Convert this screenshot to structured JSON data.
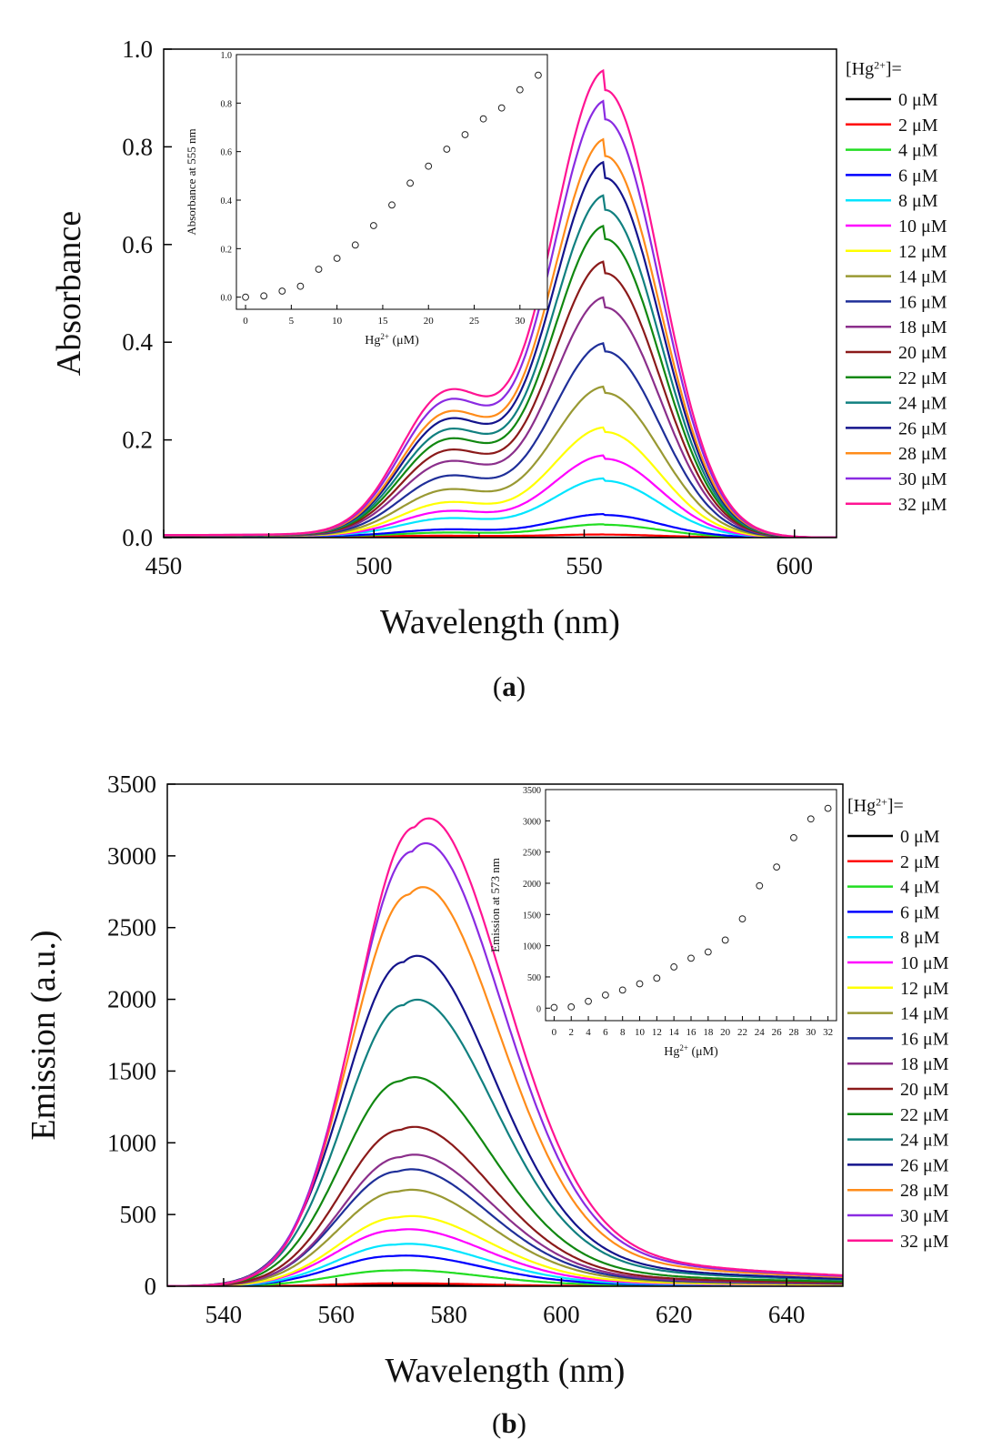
{
  "panel_a": {
    "caption": "(a)",
    "main_chart": {
      "type": "line",
      "xlabel": "Wavelength (nm)",
      "ylabel": "Absorbance",
      "xlim": [
        450,
        610
      ],
      "ylim": [
        0,
        1.0
      ],
      "xticks": [
        450,
        500,
        550,
        600
      ],
      "yticks": [
        0.0,
        0.2,
        0.4,
        0.6,
        0.8,
        1.0
      ],
      "ytick_labels": [
        "0.0",
        "0.2",
        "0.4",
        "0.6",
        "0.8",
        "1.0"
      ],
      "peak_x": 555,
      "legend_title": "[Hg2+]=",
      "legend_position": "right",
      "series": [
        {
          "name": "0 μM",
          "color": "#000000",
          "peak": 0.0
        },
        {
          "name": "2 μM",
          "color": "#ff0000",
          "peak": 0.005
        },
        {
          "name": "4 μM",
          "color": "#22dd22",
          "peak": 0.025
        },
        {
          "name": "6 μM",
          "color": "#0000ff",
          "peak": 0.045
        },
        {
          "name": "8 μM",
          "color": "#00e5ff",
          "peak": 0.115
        },
        {
          "name": "10 μM",
          "color": "#ff00ff",
          "peak": 0.16
        },
        {
          "name": "12 μM",
          "color": "#ffff00",
          "peak": 0.215
        },
        {
          "name": "14 μM",
          "color": "#999933",
          "peak": 0.295
        },
        {
          "name": "16 μM",
          "color": "#1f2f99",
          "peak": 0.38
        },
        {
          "name": "18 μM",
          "color": "#8b2f8b",
          "peak": 0.47
        },
        {
          "name": "20 μM",
          "color": "#8b1a1a",
          "peak": 0.54
        },
        {
          "name": "22 μM",
          "color": "#118811",
          "peak": 0.61
        },
        {
          "name": "24 μM",
          "color": "#118080",
          "peak": 0.67
        },
        {
          "name": "26 μM",
          "color": "#14148c",
          "peak": 0.735
        },
        {
          "name": "28 μM",
          "color": "#ff8c1a",
          "peak": 0.78
        },
        {
          "name": "30 μM",
          "color": "#8a2be2",
          "peak": 0.855
        },
        {
          "name": "32 μM",
          "color": "#ff1493",
          "peak": 0.915
        }
      ]
    },
    "inset_chart": {
      "type": "scatter",
      "xlabel": "Hg2+ (μM)",
      "ylabel": "Absorbance at 555 nm",
      "xlim": [
        -1,
        33
      ],
      "ylim": [
        -0.05,
        1.0
      ],
      "xticks": [
        0,
        5,
        10,
        15,
        20,
        25,
        30
      ],
      "yticks": [
        0.0,
        0.2,
        0.4,
        0.6,
        0.8,
        1.0
      ],
      "ytick_labels": [
        "0.0",
        "0.2",
        "0.4",
        "0.6",
        "0.8",
        "1.0"
      ],
      "x": [
        0,
        2,
        4,
        6,
        8,
        10,
        12,
        14,
        16,
        18,
        20,
        22,
        24,
        26,
        28,
        30,
        32
      ],
      "y": [
        0.0,
        0.005,
        0.025,
        0.045,
        0.115,
        0.16,
        0.215,
        0.295,
        0.38,
        0.47,
        0.54,
        0.61,
        0.67,
        0.735,
        0.78,
        0.855,
        0.915
      ]
    }
  },
  "panel_b": {
    "caption": "(b)",
    "main_chart": {
      "type": "line",
      "xlabel": "Wavelength (nm)",
      "ylabel": "Emission (a.u.)",
      "xlim": [
        530,
        650
      ],
      "ylim": [
        0,
        3500
      ],
      "xticks": [
        540,
        560,
        580,
        600,
        620,
        640
      ],
      "yticks": [
        0,
        500,
        1000,
        1500,
        2000,
        2500,
        3000,
        3500
      ],
      "ytick_labels": [
        "0",
        "500",
        "1000",
        "1500",
        "2000",
        "2500",
        "3000",
        "3500"
      ],
      "legend_title": "[Hg2+]=",
      "legend_position": "right",
      "series": [
        {
          "name": "0 μM",
          "color": "#000000",
          "peak": 10,
          "peak_x": 570
        },
        {
          "name": "2 μM",
          "color": "#ff0000",
          "peak": 20,
          "peak_x": 570
        },
        {
          "name": "4 μM",
          "color": "#22dd22",
          "peak": 110,
          "peak_x": 570
        },
        {
          "name": "6 μM",
          "color": "#0000ff",
          "peak": 210,
          "peak_x": 570
        },
        {
          "name": "8 μM",
          "color": "#00e5ff",
          "peak": 290,
          "peak_x": 570.5
        },
        {
          "name": "10 μM",
          "color": "#ff00ff",
          "peak": 390,
          "peak_x": 570.5
        },
        {
          "name": "12 μM",
          "color": "#ffff00",
          "peak": 480,
          "peak_x": 571
        },
        {
          "name": "14 μM",
          "color": "#999933",
          "peak": 660,
          "peak_x": 571
        },
        {
          "name": "16 μM",
          "color": "#1f2f99",
          "peak": 800,
          "peak_x": 571
        },
        {
          "name": "18 μM",
          "color": "#8b2f8b",
          "peak": 900,
          "peak_x": 571.5
        },
        {
          "name": "20 μM",
          "color": "#8b1a1a",
          "peak": 1090,
          "peak_x": 571.5
        },
        {
          "name": "22 μM",
          "color": "#118811",
          "peak": 1430,
          "peak_x": 571.5
        },
        {
          "name": "24 μM",
          "color": "#118080",
          "peak": 1960,
          "peak_x": 572
        },
        {
          "name": "26 μM",
          "color": "#14148c",
          "peak": 2260,
          "peak_x": 572
        },
        {
          "name": "28 μM",
          "color": "#ff8c1a",
          "peak": 2730,
          "peak_x": 573
        },
        {
          "name": "30 μM",
          "color": "#8a2be2",
          "peak": 3030,
          "peak_x": 573.5
        },
        {
          "name": "32 μM",
          "color": "#ff1493",
          "peak": 3200,
          "peak_x": 574
        }
      ]
    },
    "inset_chart": {
      "type": "scatter",
      "xlabel": "Hg2+ (μM)",
      "ylabel": "Emission at 573 nm",
      "xlim": [
        -1,
        33
      ],
      "ylim": [
        -200,
        3500
      ],
      "xticks": [
        0,
        2,
        4,
        6,
        8,
        10,
        12,
        14,
        16,
        18,
        20,
        22,
        24,
        26,
        28,
        30,
        32
      ],
      "yticks": [
        0,
        500,
        1000,
        1500,
        2000,
        2500,
        3000,
        3500
      ],
      "ytick_labels": [
        "0",
        "500",
        "1000",
        "1500",
        "2000",
        "2500",
        "3000",
        "3500"
      ],
      "x": [
        0,
        2,
        4,
        6,
        8,
        10,
        12,
        14,
        16,
        18,
        20,
        22,
        24,
        26,
        28,
        30,
        32
      ],
      "y": [
        10,
        20,
        110,
        210,
        290,
        390,
        480,
        660,
        800,
        900,
        1090,
        1430,
        1960,
        2260,
        2730,
        3030,
        3200
      ]
    }
  },
  "chart_data": [
    {
      "type": "line",
      "ref": "panel_a.main_chart"
    },
    {
      "type": "scatter",
      "ref": "panel_a.inset_chart"
    },
    {
      "type": "line",
      "ref": "panel_b.main_chart"
    },
    {
      "type": "scatter",
      "ref": "panel_b.inset_chart"
    }
  ]
}
